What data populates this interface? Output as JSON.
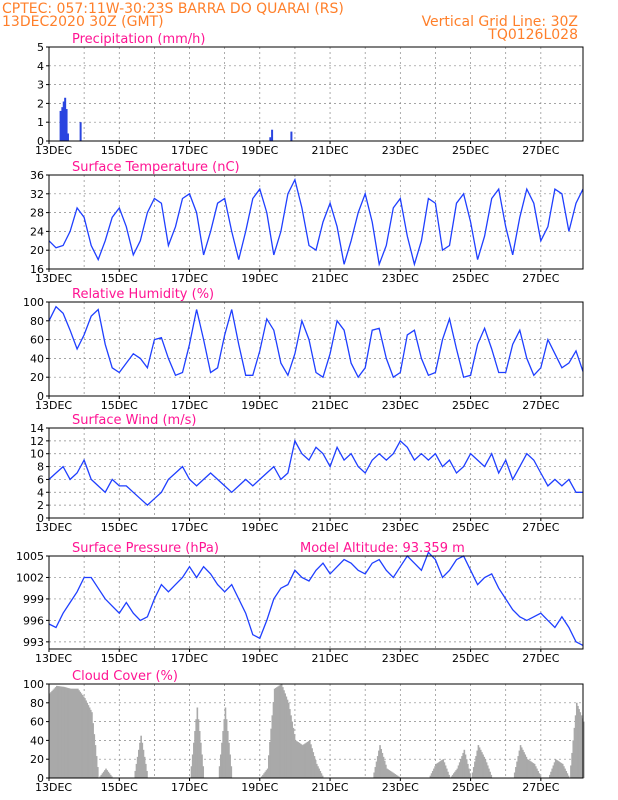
{
  "header": {
    "line1_left": "CPTEC:  057:11W-30:23S  BARRA DO QUARAI (RS)",
    "line2_left": "13DEC2020 30Z (GMT)",
    "line2_right": "Vertical Grid Line: 30Z",
    "line3_right": "TQ0126L028"
  },
  "colors": {
    "header": "#ff7f2a",
    "title": "#ff1493",
    "line": "#1f3fff",
    "bar": "#2a45e0",
    "cloud": "#a9a9a9"
  },
  "chart_data": [
    {
      "id": "precip",
      "type": "bar",
      "title": "Precipitation (mm/h)",
      "ylim": [
        0,
        5
      ],
      "yticks": [
        "0",
        "1",
        "2",
        "3",
        "4",
        "5"
      ],
      "xlim": [
        0,
        15.2
      ],
      "xticks": [
        "13DEC",
        "15DEC",
        "17DEC",
        "19DEC",
        "21DEC",
        "23DEC",
        "25DEC",
        "27DEC"
      ],
      "x": [
        0.33,
        0.38,
        0.42,
        0.46,
        0.5,
        0.54,
        0.9,
        6.3,
        6.35,
        6.9
      ],
      "values": [
        1.6,
        1.8,
        2.1,
        2.3,
        1.7,
        0.4,
        1.0,
        0.2,
        0.6,
        0.5
      ]
    },
    {
      "id": "temp",
      "type": "line",
      "title": "Surface Temperature (nC)",
      "ylim": [
        16,
        36
      ],
      "yticks": [
        "16",
        "20",
        "24",
        "28",
        "32",
        "36"
      ],
      "xlim": [
        0,
        15.2
      ],
      "xticks": [
        "13DEC",
        "15DEC",
        "17DEC",
        "19DEC",
        "21DEC",
        "23DEC",
        "25DEC",
        "27DEC"
      ],
      "x": [
        0,
        0.2,
        0.4,
        0.6,
        0.8,
        1.0,
        1.2,
        1.4,
        1.6,
        1.8,
        2.0,
        2.2,
        2.4,
        2.6,
        2.8,
        3.0,
        3.2,
        3.4,
        3.6,
        3.8,
        4.0,
        4.2,
        4.4,
        4.6,
        4.8,
        5.0,
        5.2,
        5.4,
        5.6,
        5.8,
        6.0,
        6.2,
        6.4,
        6.6,
        6.8,
        7.0,
        7.2,
        7.4,
        7.6,
        7.8,
        8.0,
        8.2,
        8.4,
        8.6,
        8.8,
        9.0,
        9.2,
        9.4,
        9.6,
        9.8,
        10.0,
        10.2,
        10.4,
        10.6,
        10.8,
        11.0,
        11.2,
        11.4,
        11.6,
        11.8,
        12.0,
        12.2,
        12.4,
        12.6,
        12.8,
        13.0,
        13.2,
        13.4,
        13.6,
        13.8,
        14.0,
        14.2,
        14.4,
        14.6,
        14.8,
        15.0,
        15.2
      ],
      "values": [
        22,
        20.5,
        21,
        24,
        29,
        27,
        21,
        18,
        22,
        27,
        29,
        25,
        19,
        22,
        28,
        31,
        30,
        21,
        25,
        31,
        32,
        28,
        19,
        24,
        30,
        31,
        24,
        18,
        24,
        31,
        33,
        28,
        19,
        24,
        32,
        35,
        29,
        21,
        20,
        26,
        30,
        25,
        17,
        22,
        28,
        32,
        26,
        17,
        21,
        29,
        31,
        23,
        17,
        22,
        31,
        30,
        20,
        21,
        30,
        32,
        26,
        18,
        23,
        31,
        33,
        25,
        19,
        27,
        33,
        30,
        22,
        25,
        33,
        32,
        24,
        30,
        33
      ]
    },
    {
      "id": "rh",
      "type": "line",
      "title": "Relative Humidity (%)",
      "ylim": [
        0,
        100
      ],
      "yticks": [
        "0",
        "20",
        "40",
        "60",
        "80",
        "100"
      ],
      "xlim": [
        0,
        15.2
      ],
      "xticks": [
        "13DEC",
        "15DEC",
        "17DEC",
        "19DEC",
        "21DEC",
        "23DEC",
        "25DEC",
        "27DEC"
      ],
      "x": [
        0,
        0.2,
        0.4,
        0.6,
        0.8,
        1.0,
        1.2,
        1.4,
        1.6,
        1.8,
        2.0,
        2.2,
        2.4,
        2.6,
        2.8,
        3.0,
        3.2,
        3.4,
        3.6,
        3.8,
        4.0,
        4.2,
        4.4,
        4.6,
        4.8,
        5.0,
        5.2,
        5.4,
        5.6,
        5.8,
        6.0,
        6.2,
        6.4,
        6.6,
        6.8,
        7.0,
        7.2,
        7.4,
        7.6,
        7.8,
        8.0,
        8.2,
        8.4,
        8.6,
        8.8,
        9.0,
        9.2,
        9.4,
        9.6,
        9.8,
        10.0,
        10.2,
        10.4,
        10.6,
        10.8,
        11.0,
        11.2,
        11.4,
        11.6,
        11.8,
        12.0,
        12.2,
        12.4,
        12.6,
        12.8,
        13.0,
        13.2,
        13.4,
        13.6,
        13.8,
        14.0,
        14.2,
        14.4,
        14.6,
        14.8,
        15.0,
        15.2
      ],
      "values": [
        80,
        95,
        88,
        70,
        50,
        65,
        85,
        92,
        55,
        30,
        25,
        35,
        45,
        40,
        30,
        60,
        62,
        40,
        22,
        25,
        55,
        92,
        60,
        25,
        30,
        65,
        92,
        55,
        22,
        22,
        48,
        82,
        70,
        35,
        22,
        45,
        80,
        60,
        25,
        20,
        45,
        80,
        70,
        35,
        20,
        30,
        70,
        72,
        40,
        20,
        25,
        65,
        70,
        40,
        22,
        25,
        60,
        82,
        50,
        20,
        22,
        55,
        72,
        50,
        25,
        25,
        55,
        70,
        40,
        22,
        30,
        60,
        45,
        30,
        35,
        48,
        26
      ]
    },
    {
      "id": "wind",
      "type": "line",
      "title": "Surface Wind (m/s)",
      "ylim": [
        0,
        14
      ],
      "yticks": [
        "0",
        "2",
        "4",
        "6",
        "8",
        "10",
        "12",
        "14"
      ],
      "xlim": [
        0,
        15.2
      ],
      "xticks": [
        "13DEC",
        "15DEC",
        "17DEC",
        "19DEC",
        "21DEC",
        "23DEC",
        "25DEC",
        "27DEC"
      ],
      "x": [
        0,
        0.2,
        0.4,
        0.6,
        0.8,
        1.0,
        1.2,
        1.4,
        1.6,
        1.8,
        2.0,
        2.2,
        2.4,
        2.6,
        2.8,
        3.0,
        3.2,
        3.4,
        3.6,
        3.8,
        4.0,
        4.2,
        4.4,
        4.6,
        4.8,
        5.0,
        5.2,
        5.4,
        5.6,
        5.8,
        6.0,
        6.2,
        6.4,
        6.6,
        6.8,
        7.0,
        7.2,
        7.4,
        7.6,
        7.8,
        8.0,
        8.2,
        8.4,
        8.6,
        8.8,
        9.0,
        9.2,
        9.4,
        9.6,
        9.8,
        10.0,
        10.2,
        10.4,
        10.6,
        10.8,
        11.0,
        11.2,
        11.4,
        11.6,
        11.8,
        12.0,
        12.2,
        12.4,
        12.6,
        12.8,
        13.0,
        13.2,
        13.4,
        13.6,
        13.8,
        14.0,
        14.2,
        14.4,
        14.6,
        14.8,
        15.0,
        15.2
      ],
      "values": [
        6,
        7,
        8,
        6,
        7,
        9,
        6,
        5,
        4,
        6,
        5,
        5,
        4,
        3,
        2,
        3,
        4,
        6,
        7,
        8,
        6,
        5,
        6,
        7,
        6,
        5,
        4,
        5,
        6,
        5,
        6,
        7,
        8,
        6,
        7,
        12,
        10,
        9,
        11,
        10,
        8,
        11,
        9,
        10,
        8,
        7,
        9,
        10,
        9,
        10,
        12,
        11,
        9,
        10,
        9,
        10,
        8,
        9,
        7,
        8,
        10,
        9,
        8,
        10,
        7,
        9,
        6,
        8,
        10,
        9,
        7,
        5,
        6,
        5,
        6,
        4,
        4
      ]
    },
    {
      "id": "pressure",
      "type": "line",
      "title": "Surface Pressure (hPa)",
      "title2": "Model Altitude: 93.359 m",
      "ylim": [
        992,
        1005
      ],
      "yticks": [
        "993",
        "996",
        "999",
        "1002",
        "1005"
      ],
      "xlim": [
        0,
        15.2
      ],
      "xticks": [
        "13DEC",
        "15DEC",
        "17DEC",
        "19DEC",
        "21DEC",
        "23DEC",
        "25DEC",
        "27DEC"
      ],
      "x": [
        0,
        0.2,
        0.4,
        0.6,
        0.8,
        1.0,
        1.2,
        1.4,
        1.6,
        1.8,
        2.0,
        2.2,
        2.4,
        2.6,
        2.8,
        3.0,
        3.2,
        3.4,
        3.6,
        3.8,
        4.0,
        4.2,
        4.4,
        4.6,
        4.8,
        5.0,
        5.2,
        5.4,
        5.6,
        5.8,
        6.0,
        6.2,
        6.4,
        6.6,
        6.8,
        7.0,
        7.2,
        7.4,
        7.6,
        7.8,
        8.0,
        8.2,
        8.4,
        8.6,
        8.8,
        9.0,
        9.2,
        9.4,
        9.6,
        9.8,
        10.0,
        10.2,
        10.4,
        10.6,
        10.8,
        11.0,
        11.2,
        11.4,
        11.6,
        11.8,
        12.0,
        12.2,
        12.4,
        12.6,
        12.8,
        13.0,
        13.2,
        13.4,
        13.6,
        13.8,
        14.0,
        14.2,
        14.4,
        14.6,
        14.8,
        15.0,
        15.2
      ],
      "values": [
        995.5,
        995,
        997,
        998.5,
        1000,
        1002,
        1002,
        1000.5,
        999,
        998,
        997,
        998.5,
        997,
        996,
        996.5,
        999,
        1001,
        1000,
        1001,
        1002,
        1003.5,
        1002,
        1003.5,
        1002.5,
        1001,
        1000,
        1001,
        999,
        997,
        994,
        993.5,
        996,
        999,
        1000.5,
        1001,
        1003,
        1002,
        1001.5,
        1003,
        1004,
        1002.5,
        1003.5,
        1004.5,
        1004,
        1003,
        1002.5,
        1004,
        1004.5,
        1003,
        1002,
        1003.5,
        1005,
        1004,
        1003,
        1005.5,
        1004.5,
        1002,
        1003,
        1004.5,
        1005,
        1003,
        1001,
        1002,
        1002.5,
        1000.5,
        999,
        997.5,
        996.5,
        996,
        996.5,
        997,
        996,
        995,
        996.5,
        995,
        993,
        992.5
      ]
    },
    {
      "id": "cloud",
      "type": "area",
      "title": "Cloud Cover (%)",
      "ylim": [
        0,
        100
      ],
      "yticks": [
        "0",
        "20",
        "40",
        "60",
        "80",
        "100"
      ],
      "xlim": [
        0,
        15.2
      ],
      "xticks": [
        "13DEC",
        "15DEC",
        "17DEC",
        "19DEC",
        "21DEC",
        "23DEC",
        "25DEC",
        "27DEC"
      ],
      "x": [
        0,
        0.2,
        0.4,
        0.6,
        0.8,
        1.0,
        1.2,
        1.4,
        1.6,
        1.8,
        2.0,
        2.2,
        2.4,
        2.6,
        2.8,
        3.0,
        3.2,
        3.4,
        3.6,
        3.8,
        4.0,
        4.2,
        4.4,
        4.6,
        4.8,
        5.0,
        5.2,
        5.4,
        5.6,
        5.8,
        6.0,
        6.2,
        6.4,
        6.6,
        6.8,
        7.0,
        7.2,
        7.4,
        7.6,
        7.8,
        8.0,
        8.2,
        8.4,
        8.6,
        8.8,
        9.0,
        9.2,
        9.4,
        9.6,
        9.8,
        10.0,
        10.2,
        10.4,
        10.6,
        10.8,
        11.0,
        11.2,
        11.4,
        11.6,
        11.8,
        12.0,
        12.2,
        12.4,
        12.6,
        12.8,
        13.0,
        13.2,
        13.4,
        13.6,
        13.8,
        14.0,
        14.2,
        14.4,
        14.6,
        14.8,
        15.0,
        15.2
      ],
      "values": [
        90,
        98,
        97,
        95,
        95,
        85,
        70,
        0,
        10,
        0,
        0,
        0,
        0,
        45,
        0,
        0,
        0,
        0,
        0,
        0,
        0,
        75,
        0,
        0,
        0,
        75,
        0,
        0,
        0,
        0,
        0,
        10,
        95,
        100,
        80,
        40,
        35,
        40,
        15,
        0,
        0,
        0,
        0,
        0,
        0,
        0,
        0,
        35,
        10,
        5,
        0,
        0,
        0,
        0,
        0,
        15,
        20,
        0,
        10,
        30,
        0,
        35,
        20,
        0,
        0,
        0,
        0,
        35,
        20,
        15,
        0,
        0,
        20,
        15,
        0,
        80,
        60
      ]
    }
  ]
}
